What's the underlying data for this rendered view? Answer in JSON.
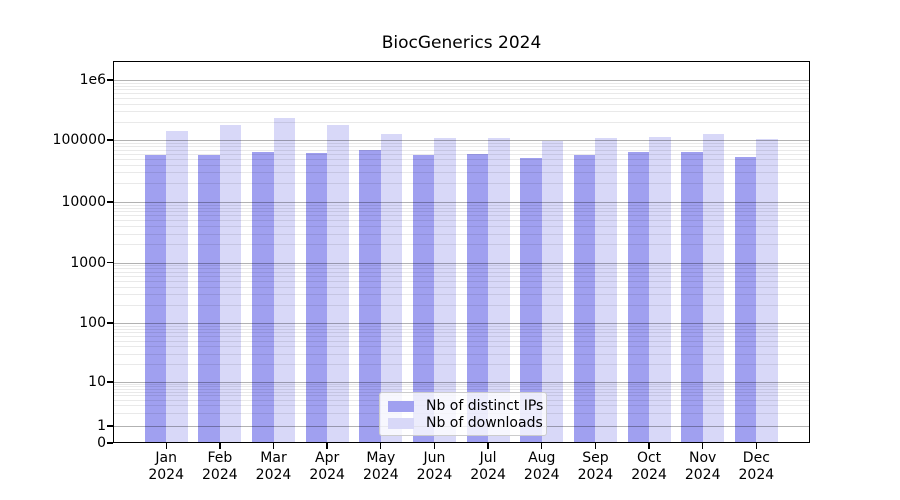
{
  "chart_data": {
    "type": "bar",
    "title": "BiocGenerics 2024",
    "categories": [
      "Jan 2024",
      "Feb 2024",
      "Mar 2024",
      "Apr 2024",
      "May 2024",
      "Jun 2024",
      "Jul 2024",
      "Aug 2024",
      "Sep 2024",
      "Oct 2024",
      "Nov 2024",
      "Dec 2024"
    ],
    "series": [
      {
        "name": "Nb of distinct IPs",
        "color": "#a0a0f0",
        "values": [
          57000,
          57000,
          63000,
          62000,
          68000,
          57000,
          60000,
          50500,
          56500,
          63000,
          64000,
          54000
        ]
      },
      {
        "name": "Nb of downloads",
        "color": "#d8d8f8",
        "values": [
          140000,
          175000,
          230000,
          178000,
          127000,
          106000,
          110000,
          98000,
          107000,
          112000,
          127000,
          102000
        ]
      }
    ],
    "yscale": "symlog",
    "ylim": [
      0,
      1000000
    ],
    "y_ticks": [
      "0",
      "1",
      "10",
      "100",
      "1000",
      "10000",
      "100000",
      "1e6"
    ],
    "grid": "major-and-minor horizontal",
    "legend_position": "lower center",
    "xlabel": "",
    "ylabel": ""
  }
}
